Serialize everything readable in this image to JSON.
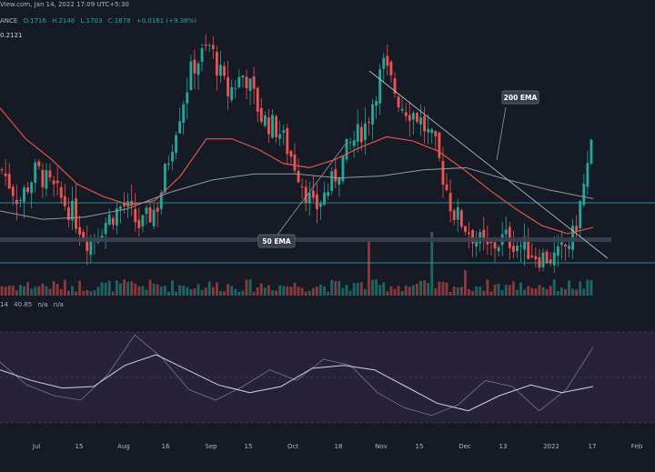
{
  "header": {
    "source": "View.com, Jan 14, 2022 17:09 UTC+5:30",
    "ohlc_prefix": "ANCE",
    "open": "O.1716",
    "high": "H.2148",
    "low": "L.1703",
    "close": "C.1878",
    "change": "+0.0161 (+9.38%)",
    "price_label": "0.2121"
  },
  "rsi_header": {
    "prefix": "14",
    "value": "40.85",
    "na1": "n/a",
    "na2": "n/a"
  },
  "annotations": {
    "ema50": "50 EMA",
    "ema200": "200 EMA"
  },
  "colors": {
    "background": "#161a25",
    "up": "#26a69a",
    "down": "#ef5350",
    "ema50": "#e3544a",
    "ema200": "#9598a1",
    "level": "#2ab1b3",
    "rsi_band": "#2a2340",
    "rsi_line": "#8c8f99"
  },
  "chart_data": {
    "type": "candlestick",
    "x_axis_labels": [
      "Jul",
      "15",
      "Aug",
      "16",
      "Sep",
      "15",
      "Oct",
      "18",
      "Nov",
      "15",
      "Dec",
      "13",
      "2022",
      "17",
      "Feb"
    ],
    "price_path": [
      0.185,
      0.17,
      0.185,
      0.175,
      0.165,
      0.15,
      0.16,
      0.168,
      0.157,
      0.168,
      0.205,
      0.235,
      0.245,
      0.222,
      0.232,
      0.21,
      0.204,
      0.186,
      0.165,
      0.178,
      0.196,
      0.207,
      0.236,
      0.217,
      0.211,
      0.196,
      0.165,
      0.155,
      0.146,
      0.152,
      0.148,
      0.143,
      0.142,
      0.153,
      0.195
    ],
    "ema50": [
      0.215,
      0.2,
      0.19,
      0.178,
      0.172,
      0.168,
      0.17,
      0.182,
      0.2,
      0.2,
      0.195,
      0.188,
      0.186,
      0.19,
      0.196,
      0.201,
      0.199,
      0.194,
      0.185,
      0.175,
      0.166,
      0.158,
      0.154,
      0.157
    ],
    "ema200": [
      0.165,
      0.161,
      0.162,
      0.166,
      0.174,
      0.18,
      0.183,
      0.183,
      0.181,
      0.182,
      0.185,
      0.186,
      0.18,
      0.175,
      0.171
    ],
    "rsi": [
      60,
      45,
      38,
      35,
      52,
      78,
      63,
      42,
      35,
      44,
      55,
      48,
      62,
      58,
      40,
      30,
      25,
      32,
      48,
      44,
      28,
      42,
      70
    ],
    "rsi_ma": [
      55,
      48,
      43,
      44,
      58,
      65,
      55,
      45,
      40,
      44,
      56,
      58,
      55,
      44,
      33,
      28,
      38,
      45,
      40,
      44
    ],
    "grid": false
  }
}
